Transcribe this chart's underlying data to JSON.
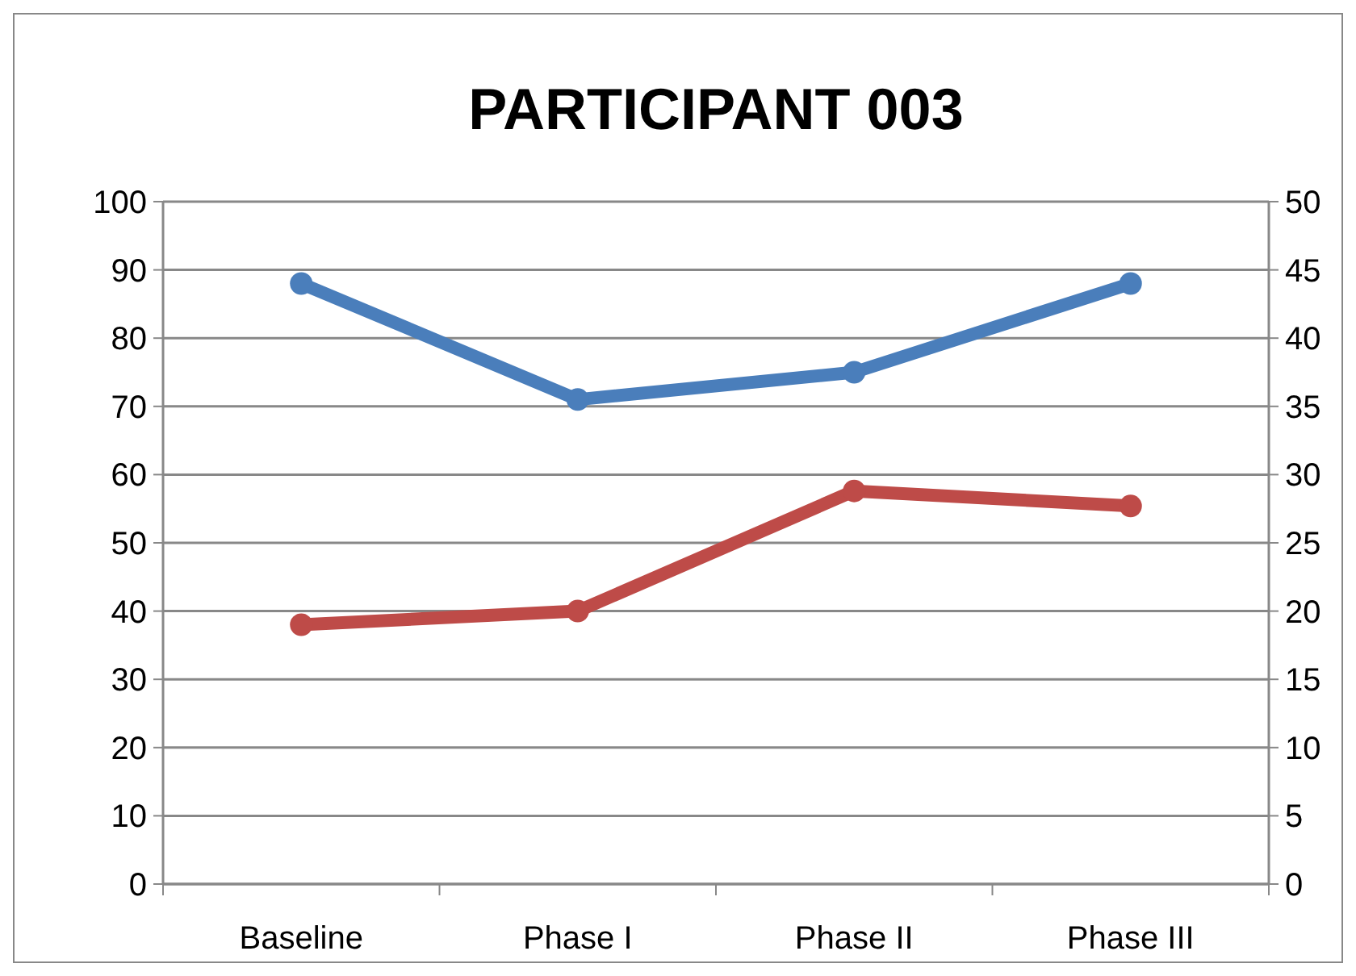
{
  "chart_data": {
    "type": "line",
    "title": "PARTICIPANT 003",
    "categories": [
      "Baseline",
      "Phase I",
      "Phase II",
      "Phase III"
    ],
    "series": [
      {
        "color": "#4a7ebb",
        "values": [
          88,
          71,
          75,
          88
        ]
      },
      {
        "color": "#be4b48",
        "values": [
          19,
          20,
          28.8,
          27.7
        ],
        "axis": "y2"
      }
    ],
    "ylim": [
      0,
      100
    ],
    "yticks": [
      0,
      10,
      20,
      30,
      40,
      50,
      60,
      70,
      80,
      90,
      100
    ],
    "y2lim": [
      0,
      50
    ],
    "y2ticks": [
      0,
      5,
      10,
      15,
      20,
      25,
      30,
      35,
      40,
      45,
      50
    ],
    "grid": "y",
    "marker": "circle",
    "line_style": "solid"
  }
}
